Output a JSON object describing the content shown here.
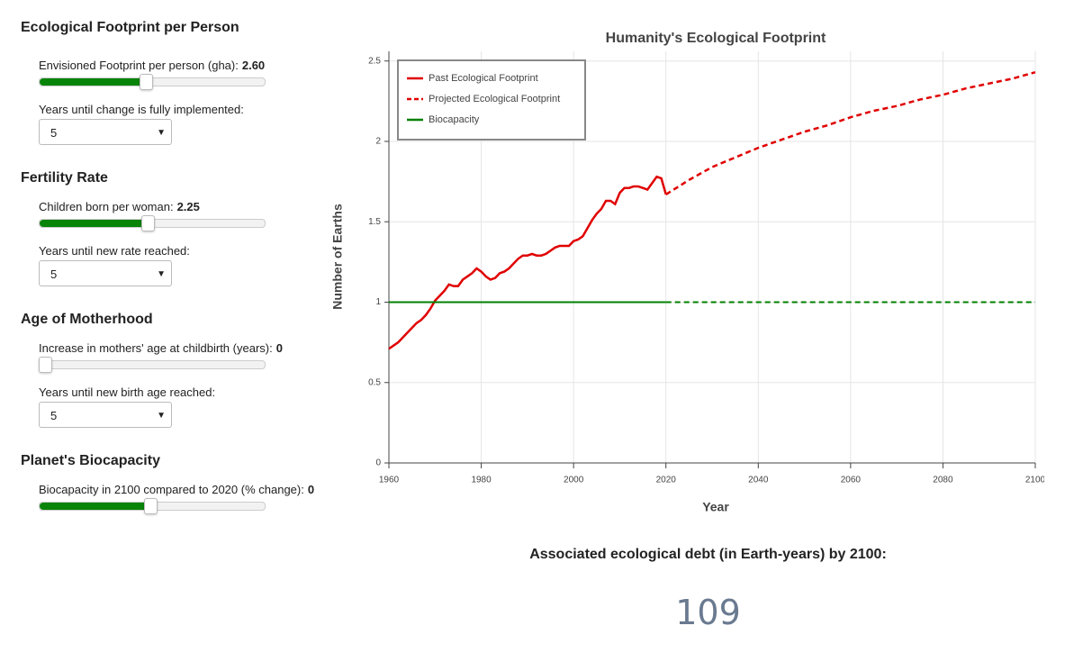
{
  "controls": [
    {
      "heading": "Ecological Footprint per Person",
      "slider": {
        "label": "Envisioned Footprint per person (gha):",
        "value": "2.60"
      },
      "select": {
        "label": "Years until change is fully implemented:",
        "value": 5
      }
    },
    {
      "heading": "Fertility Rate",
      "slider": {
        "label": "Children born per woman:",
        "value": 2.25
      },
      "select": {
        "label": "Years until new rate reached:",
        "value": 5
      }
    },
    {
      "heading": "Age of Motherhood",
      "slider": {
        "label": "Increase in mothers' age at childbirth (years):",
        "value": 0
      },
      "select": {
        "label": "Years until new birth age reached:",
        "value": 5
      }
    },
    {
      "heading": "Planet's Biocapacity",
      "slider": {
        "label": "Biocapacity in 2100 compared to 2020 (% change):",
        "value": 0
      }
    }
  ],
  "chart_data": {
    "type": "line",
    "title": "Humanity's Ecological Footprint",
    "x_label": "Year",
    "y_label": "Number of Earths",
    "xlim": [
      1960,
      2100
    ],
    "xticks": [
      1960,
      1980,
      2000,
      2020,
      2040,
      2060,
      2080,
      2100
    ],
    "ylim": [
      0,
      2.56
    ],
    "yticks": [
      0,
      0.5,
      1,
      1.5,
      2,
      2.5
    ],
    "grid": true,
    "legend": "top-left",
    "series": [
      {
        "name": "Past Ecological Footprint",
        "color": "#e00000",
        "dashed": false,
        "x": [
          1960,
          1961,
          1962,
          1963,
          1964,
          1965,
          1966,
          1967,
          1968,
          1969,
          1970,
          1971,
          1972,
          1973,
          1974,
          1975,
          1976,
          1977,
          1978,
          1979,
          1980,
          1981,
          1982,
          1983,
          1984,
          1985,
          1986,
          1987,
          1988,
          1989,
          1990,
          1991,
          1992,
          1993,
          1994,
          1995,
          1996,
          1997,
          1998,
          1999,
          2000,
          2001,
          2002,
          2003,
          2004,
          2005,
          2006,
          2007,
          2008,
          2009,
          2010,
          2011,
          2012,
          2013,
          2014,
          2015,
          2016,
          2017,
          2018,
          2019,
          2020
        ],
        "values": [
          0.71,
          0.73,
          0.75,
          0.78,
          0.81,
          0.84,
          0.87,
          0.89,
          0.92,
          0.96,
          1.01,
          1.04,
          1.07,
          1.11,
          1.1,
          1.1,
          1.14,
          1.16,
          1.18,
          1.21,
          1.19,
          1.16,
          1.14,
          1.15,
          1.18,
          1.19,
          1.21,
          1.24,
          1.27,
          1.29,
          1.29,
          1.3,
          1.29,
          1.29,
          1.3,
          1.32,
          1.34,
          1.35,
          1.35,
          1.35,
          1.38,
          1.39,
          1.41,
          1.46,
          1.51,
          1.55,
          1.58,
          1.63,
          1.63,
          1.61,
          1.68,
          1.71,
          1.71,
          1.72,
          1.72,
          1.71,
          1.7,
          1.74,
          1.78,
          1.77,
          1.67
        ]
      },
      {
        "name": "Projected Ecological Footprint",
        "color": "#e00000",
        "dashed": true,
        "x": [
          2020,
          2025,
          2030,
          2035,
          2040,
          2045,
          2050,
          2055,
          2060,
          2065,
          2070,
          2075,
          2080,
          2085,
          2090,
          2095,
          2100
        ],
        "values": [
          1.67,
          1.76,
          1.84,
          1.9,
          1.96,
          2.01,
          2.06,
          2.1,
          2.15,
          2.19,
          2.22,
          2.26,
          2.29,
          2.33,
          2.36,
          2.39,
          2.43
        ]
      },
      {
        "name": "Biocapacity",
        "color": "#008000",
        "dashed": false,
        "x": [
          1960,
          2020
        ],
        "values": [
          1,
          1
        ]
      },
      {
        "color": "#008000",
        "dashed": true,
        "x": [
          2020,
          2100
        ],
        "values": [
          1,
          1
        ]
      }
    ]
  },
  "debt": {
    "label": "Associated ecological debt (in Earth-years) by 2100:",
    "value": 109
  }
}
